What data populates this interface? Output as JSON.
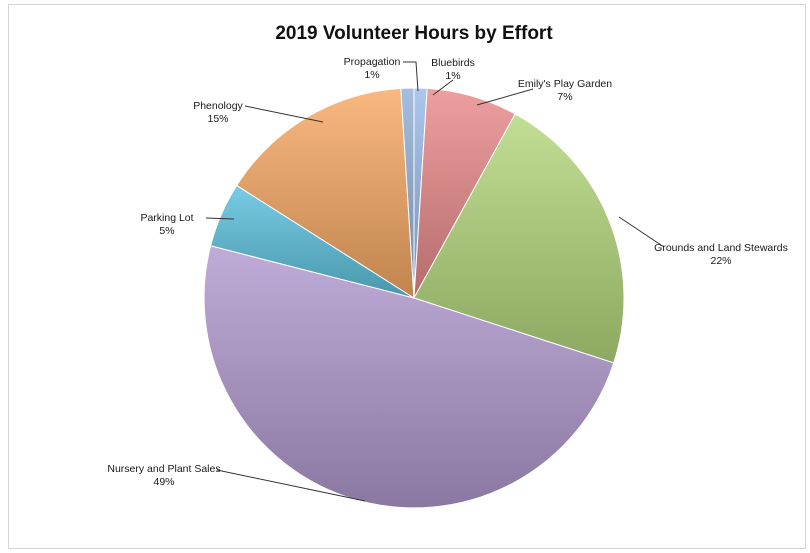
{
  "chart_data": {
    "type": "pie",
    "title": "2019 Volunteer Hours by Effort",
    "slices": [
      {
        "label": "Bluebirds",
        "value": 1,
        "display": "1%",
        "color": "#9ab9e8"
      },
      {
        "label": "Emily's Play Garden",
        "value": 7,
        "display": "7%",
        "color": "#e88a8a"
      },
      {
        "label": "Grounds and Land Stewards",
        "value": 22,
        "display": "22%",
        "color": "#b4d77c"
      },
      {
        "label": "Nursery and Plant Sales",
        "value": 49,
        "display": "49%",
        "color": "#b19ad0"
      },
      {
        "label": "Parking Lot",
        "value": 5,
        "display": "5%",
        "color": "#5cc1de"
      },
      {
        "label": "Phenology",
        "value": 15,
        "display": "15%",
        "color": "#f8a964"
      },
      {
        "label": "Propagation",
        "value": 1,
        "display": "1%",
        "color": "#93b0d6"
      }
    ],
    "start": "12 o'clock",
    "direction": "clockwise",
    "legend": "none (labels beside slices)"
  }
}
